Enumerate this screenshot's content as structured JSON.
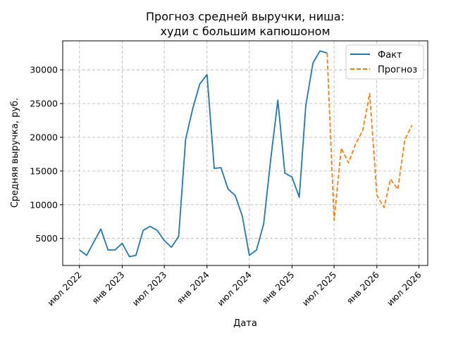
{
  "chart_data": {
    "type": "line",
    "title": [
      "Прогноз средней выручки, ниша:",
      "худи с большим капюшоном"
    ],
    "xlabel": "Дата",
    "ylabel": "Средняя выручка, руб.",
    "x_ticks": [
      {
        "date": "2022-07-01",
        "label": "июл 2022"
      },
      {
        "date": "2023-01-01",
        "label": "янв 2023"
      },
      {
        "date": "2023-07-01",
        "label": "июл 2023"
      },
      {
        "date": "2024-01-01",
        "label": "янв 2024"
      },
      {
        "date": "2024-07-01",
        "label": "июл 2024"
      },
      {
        "date": "2025-01-01",
        "label": "янв 2025"
      },
      {
        "date": "2025-07-01",
        "label": "июл 2025"
      },
      {
        "date": "2026-01-01",
        "label": "янв 2026"
      },
      {
        "date": "2026-07-01",
        "label": "июл 2026"
      }
    ],
    "y_ticks": [
      5000,
      10000,
      15000,
      20000,
      25000,
      30000
    ],
    "xlim": [
      "2022-04-20",
      "2026-08-08"
    ],
    "ylim": [
      1000,
      34300
    ],
    "grid": true,
    "legend_position": "top-right",
    "series": [
      {
        "name": "Факт",
        "color": "#1f77b4",
        "style": "solid",
        "points": [
          [
            "2022-07-01",
            3300
          ],
          [
            "2022-08-01",
            2500
          ],
          [
            "2022-09-01",
            4500
          ],
          [
            "2022-10-01",
            6400
          ],
          [
            "2022-11-01",
            3300
          ],
          [
            "2022-12-01",
            3300
          ],
          [
            "2023-01-01",
            4300
          ],
          [
            "2023-02-01",
            2300
          ],
          [
            "2023-03-01",
            2500
          ],
          [
            "2023-04-01",
            6200
          ],
          [
            "2023-05-01",
            6800
          ],
          [
            "2023-06-01",
            6200
          ],
          [
            "2023-07-01",
            4700
          ],
          [
            "2023-08-01",
            3700
          ],
          [
            "2023-09-01",
            5300
          ],
          [
            "2023-10-01",
            19700
          ],
          [
            "2023-11-01",
            24300
          ],
          [
            "2023-12-01",
            27900
          ],
          [
            "2024-01-01",
            29300
          ],
          [
            "2024-02-01",
            15400
          ],
          [
            "2024-03-01",
            15500
          ],
          [
            "2024-04-01",
            12300
          ],
          [
            "2024-05-01",
            11400
          ],
          [
            "2024-06-01",
            8300
          ],
          [
            "2024-07-01",
            2500
          ],
          [
            "2024-08-01",
            3300
          ],
          [
            "2024-09-01",
            7200
          ],
          [
            "2024-10-01",
            16700
          ],
          [
            "2024-11-01",
            25500
          ],
          [
            "2024-12-01",
            14700
          ],
          [
            "2025-01-01",
            14100
          ],
          [
            "2025-02-01",
            11100
          ],
          [
            "2025-03-01",
            24700
          ],
          [
            "2025-04-01",
            31000
          ],
          [
            "2025-05-01",
            32800
          ],
          [
            "2025-06-01",
            32500
          ]
        ]
      },
      {
        "name": "Прогноз",
        "color": "#ff7f0e",
        "style": "dashed",
        "points": [
          [
            "2025-06-01",
            32500
          ],
          [
            "2025-07-01",
            7700
          ],
          [
            "2025-08-01",
            18400
          ],
          [
            "2025-09-01",
            16200
          ],
          [
            "2025-10-01",
            19000
          ],
          [
            "2025-11-01",
            21000
          ],
          [
            "2025-12-01",
            26500
          ],
          [
            "2026-01-01",
            11400
          ],
          [
            "2026-02-01",
            9600
          ],
          [
            "2026-03-01",
            13800
          ],
          [
            "2026-04-01",
            12300
          ],
          [
            "2026-05-01",
            19600
          ],
          [
            "2026-06-01",
            21800
          ]
        ]
      }
    ]
  }
}
